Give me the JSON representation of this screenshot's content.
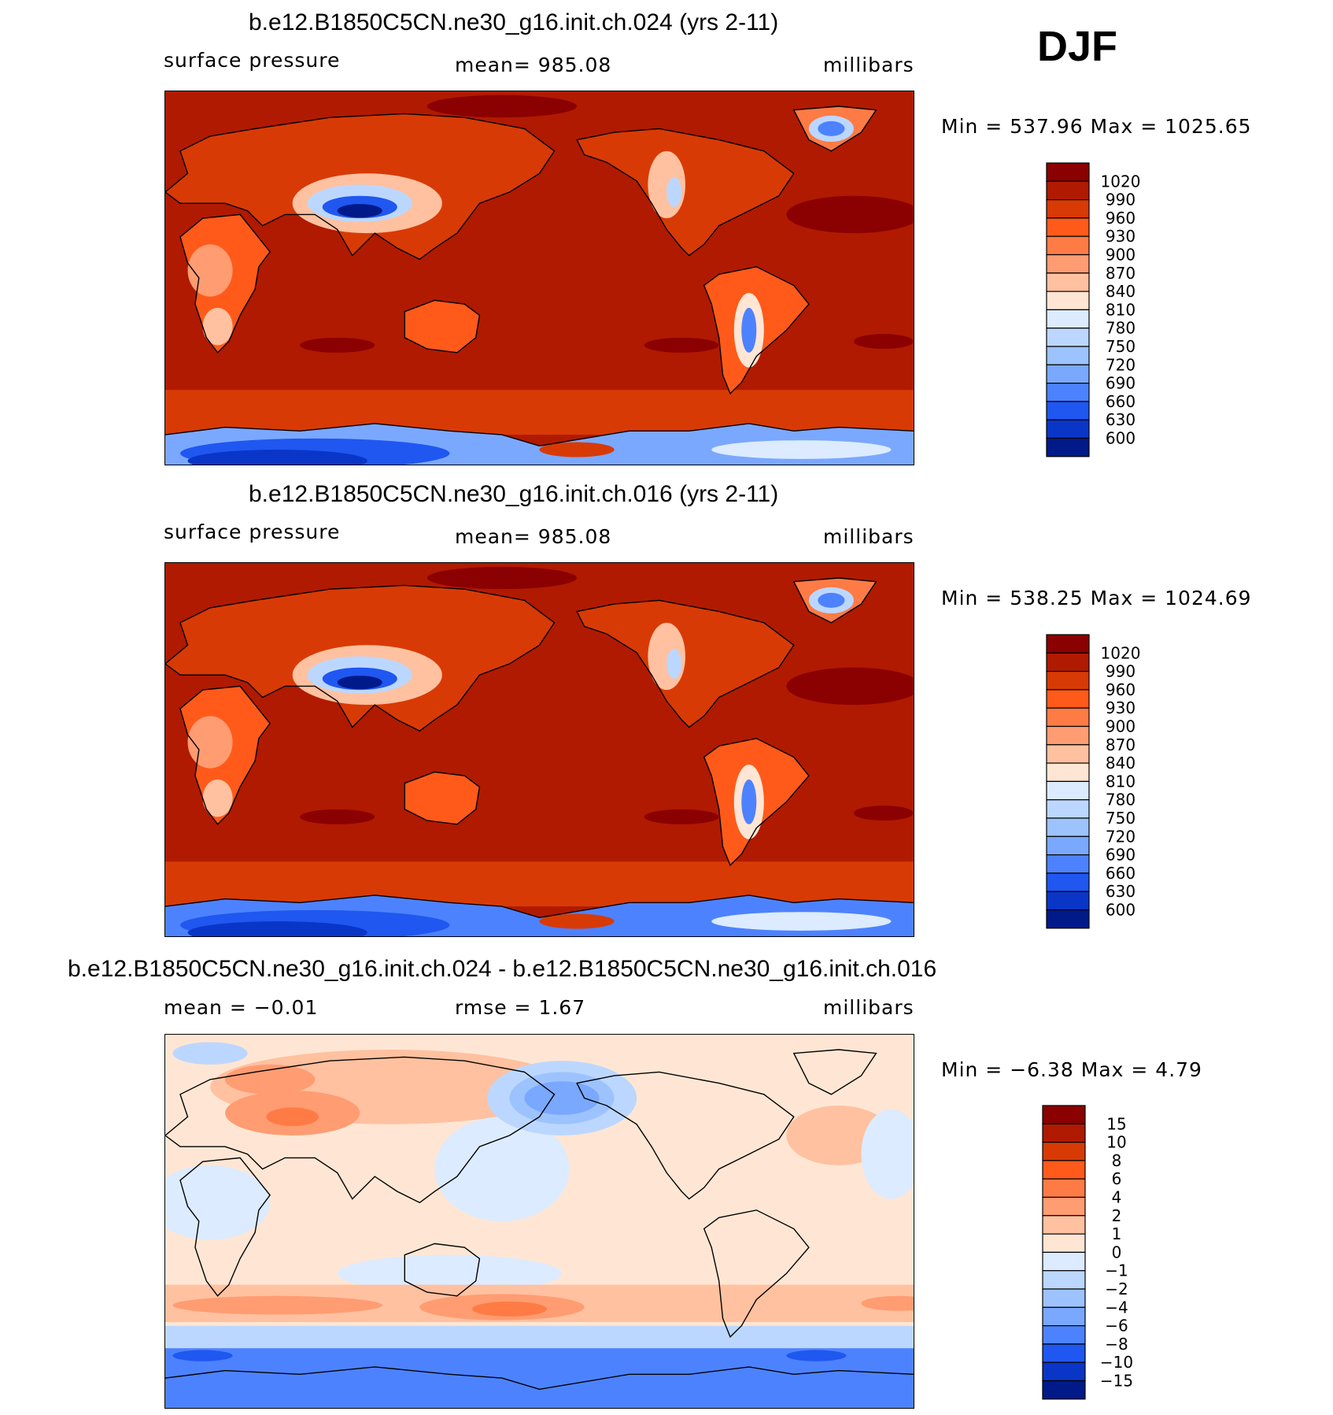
{
  "season_label": "DJF",
  "chart_data": [
    {
      "type": "heatmap",
      "title": "b.e12.B1850C5CN.ne30_g16.init.ch.024 (yrs 2-11)",
      "variable": "surface pressure",
      "stat_text": "mean=  985.08",
      "units": "millibars",
      "minmax_text": "Min  =  537.96  Max  =  1025.65",
      "min": 537.96,
      "max": 1025.65,
      "mean": 985.08,
      "colorbar_levels": [
        "1020",
        "990",
        "960",
        "930",
        "900",
        "870",
        "840",
        "810",
        "780",
        "750",
        "720",
        "690",
        "660",
        "630",
        "600"
      ],
      "colors": [
        "#8b0000",
        "#b01a00",
        "#d83a05",
        "#ff5a1a",
        "#ff7b45",
        "#ff9c72",
        "#ffc1a0",
        "#ffe6d4",
        "#dcebff",
        "#bcd7ff",
        "#9dc3ff",
        "#7aa8ff",
        "#4d82ff",
        "#1f57f0",
        "#0a36c8",
        "#001a8a"
      ]
    },
    {
      "type": "heatmap",
      "title": "b.e12.B1850C5CN.ne30_g16.init.ch.016 (yrs 2-11)",
      "variable": "surface pressure",
      "stat_text": "mean=  985.08",
      "units": "millibars",
      "minmax_text": "Min  =  538.25  Max  =  1024.69",
      "min": 538.25,
      "max": 1024.69,
      "mean": 985.08,
      "colorbar_levels": [
        "1020",
        "990",
        "960",
        "930",
        "900",
        "870",
        "840",
        "810",
        "780",
        "750",
        "720",
        "690",
        "660",
        "630",
        "600"
      ],
      "colors": [
        "#8b0000",
        "#b01a00",
        "#d83a05",
        "#ff5a1a",
        "#ff7b45",
        "#ff9c72",
        "#ffc1a0",
        "#ffe6d4",
        "#dcebff",
        "#bcd7ff",
        "#9dc3ff",
        "#7aa8ff",
        "#4d82ff",
        "#1f57f0",
        "#0a36c8",
        "#001a8a"
      ]
    },
    {
      "type": "heatmap",
      "title": "b.e12.B1850C5CN.ne30_g16.init.ch.024 - b.e12.B1850C5CN.ne30_g16.init.ch.016",
      "stat_left": "mean  =   −0.01",
      "stat_mid": "rmse  =     1.67",
      "units": "millibars",
      "minmax_text": "Min  =   −6.38  Max  =     4.79",
      "min": -6.38,
      "max": 4.79,
      "mean": -0.01,
      "rmse": 1.67,
      "colorbar_levels": [
        "15",
        "10",
        "8",
        "6",
        "4",
        "2",
        "1",
        "0",
        "−1",
        "−2",
        "−4",
        "−6",
        "−8",
        "−10",
        "−15"
      ],
      "colors": [
        "#8b0000",
        "#b01a00",
        "#d83a05",
        "#ff5a1a",
        "#ff7b45",
        "#ff9c72",
        "#ffc1a0",
        "#ffe6d4",
        "#dcebff",
        "#bcd7ff",
        "#9dc3ff",
        "#7aa8ff",
        "#4d82ff",
        "#1f57f0",
        "#0a36c8",
        "#001a8a"
      ]
    }
  ]
}
